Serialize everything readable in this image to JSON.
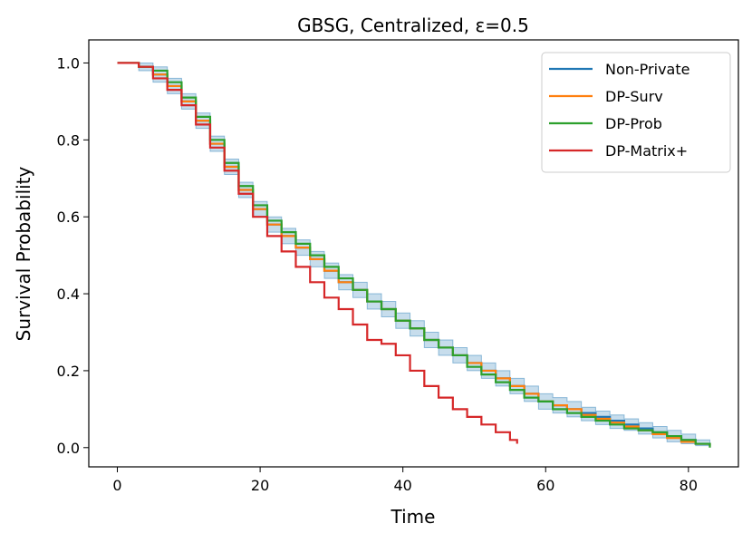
{
  "chart_data": {
    "type": "line",
    "title": "GBSG, Centralized, ε=0.5",
    "xlabel": "Time",
    "ylabel": "Survival Probability",
    "xlim": [
      -4,
      87
    ],
    "ylim": [
      -0.05,
      1.06
    ],
    "xticks": [
      0,
      20,
      40,
      60,
      80
    ],
    "yticks": [
      0.0,
      0.2,
      0.4,
      0.6,
      0.8,
      1.0
    ],
    "xtick_labels": [
      "0",
      "20",
      "40",
      "60",
      "80"
    ],
    "ytick_labels": [
      "0.0",
      "0.2",
      "0.4",
      "0.6",
      "0.8",
      "1.0"
    ],
    "grid": false,
    "legend_position": "top-right",
    "step": true,
    "series": [
      {
        "name": "Non-Private",
        "color": "#1f77b4",
        "points": [
          [
            0,
            1.0
          ],
          [
            3,
            0.99
          ],
          [
            5,
            0.97
          ],
          [
            7,
            0.94
          ],
          [
            9,
            0.9
          ],
          [
            11,
            0.85
          ],
          [
            13,
            0.79
          ],
          [
            15,
            0.73
          ],
          [
            17,
            0.67
          ],
          [
            19,
            0.62
          ],
          [
            21,
            0.58
          ],
          [
            23,
            0.55
          ],
          [
            25,
            0.52
          ],
          [
            27,
            0.49
          ],
          [
            29,
            0.46
          ],
          [
            31,
            0.43
          ],
          [
            33,
            0.41
          ],
          [
            35,
            0.38
          ],
          [
            37,
            0.36
          ],
          [
            39,
            0.33
          ],
          [
            41,
            0.31
          ],
          [
            43,
            0.28
          ],
          [
            45,
            0.26
          ],
          [
            47,
            0.24
          ],
          [
            49,
            0.22
          ],
          [
            51,
            0.2
          ],
          [
            53,
            0.18
          ],
          [
            55,
            0.16
          ],
          [
            57,
            0.14
          ],
          [
            59,
            0.12
          ],
          [
            61,
            0.11
          ],
          [
            63,
            0.1
          ],
          [
            65,
            0.09
          ],
          [
            67,
            0.08
          ],
          [
            69,
            0.07
          ],
          [
            71,
            0.06
          ],
          [
            73,
            0.05
          ],
          [
            75,
            0.04
          ],
          [
            77,
            0.03
          ],
          [
            79,
            0.02
          ],
          [
            81,
            0.01
          ],
          [
            83,
            0.005
          ]
        ]
      },
      {
        "name": "DP-Surv",
        "color": "#ff7f0e",
        "points": [
          [
            0,
            1.0
          ],
          [
            3,
            0.99
          ],
          [
            5,
            0.97
          ],
          [
            7,
            0.94
          ],
          [
            9,
            0.9
          ],
          [
            11,
            0.85
          ],
          [
            13,
            0.79
          ],
          [
            15,
            0.73
          ],
          [
            17,
            0.67
          ],
          [
            19,
            0.62
          ],
          [
            21,
            0.58
          ],
          [
            23,
            0.55
          ],
          [
            25,
            0.52
          ],
          [
            27,
            0.49
          ],
          [
            29,
            0.46
          ],
          [
            31,
            0.43
          ],
          [
            33,
            0.41
          ],
          [
            35,
            0.38
          ],
          [
            37,
            0.36
          ],
          [
            39,
            0.33
          ],
          [
            41,
            0.31
          ],
          [
            43,
            0.28
          ],
          [
            45,
            0.26
          ],
          [
            47,
            0.24
          ],
          [
            49,
            0.22
          ],
          [
            51,
            0.2
          ],
          [
            53,
            0.18
          ],
          [
            55,
            0.16
          ],
          [
            57,
            0.14
          ],
          [
            59,
            0.12
          ],
          [
            61,
            0.11
          ],
          [
            63,
            0.1
          ],
          [
            65,
            0.085
          ],
          [
            67,
            0.075
          ],
          [
            69,
            0.065
          ],
          [
            71,
            0.055
          ],
          [
            73,
            0.045
          ],
          [
            75,
            0.035
          ],
          [
            77,
            0.025
          ],
          [
            79,
            0.015
          ],
          [
            81,
            0.01
          ],
          [
            83,
            0.005
          ]
        ]
      },
      {
        "name": "DP-Prob",
        "color": "#2ca02c",
        "points": [
          [
            0,
            1.0
          ],
          [
            3,
            0.99
          ],
          [
            5,
            0.98
          ],
          [
            7,
            0.95
          ],
          [
            9,
            0.91
          ],
          [
            11,
            0.86
          ],
          [
            13,
            0.8
          ],
          [
            15,
            0.74
          ],
          [
            17,
            0.68
          ],
          [
            19,
            0.63
          ],
          [
            21,
            0.59
          ],
          [
            23,
            0.56
          ],
          [
            25,
            0.53
          ],
          [
            27,
            0.5
          ],
          [
            29,
            0.47
          ],
          [
            31,
            0.44
          ],
          [
            33,
            0.41
          ],
          [
            35,
            0.38
          ],
          [
            37,
            0.36
          ],
          [
            39,
            0.33
          ],
          [
            41,
            0.31
          ],
          [
            43,
            0.28
          ],
          [
            45,
            0.26
          ],
          [
            47,
            0.24
          ],
          [
            49,
            0.21
          ],
          [
            51,
            0.19
          ],
          [
            53,
            0.17
          ],
          [
            55,
            0.15
          ],
          [
            57,
            0.13
          ],
          [
            59,
            0.12
          ],
          [
            61,
            0.1
          ],
          [
            63,
            0.09
          ],
          [
            65,
            0.08
          ],
          [
            67,
            0.07
          ],
          [
            69,
            0.06
          ],
          [
            71,
            0.05
          ],
          [
            73,
            0.045
          ],
          [
            75,
            0.04
          ],
          [
            77,
            0.03
          ],
          [
            79,
            0.02
          ],
          [
            81,
            0.01
          ],
          [
            83,
            0.0
          ]
        ]
      },
      {
        "name": "DP-Matrix+",
        "color": "#d62728",
        "points": [
          [
            0,
            1.0
          ],
          [
            3,
            0.99
          ],
          [
            5,
            0.96
          ],
          [
            7,
            0.93
          ],
          [
            9,
            0.89
          ],
          [
            11,
            0.84
          ],
          [
            13,
            0.78
          ],
          [
            15,
            0.72
          ],
          [
            17,
            0.66
          ],
          [
            19,
            0.6
          ],
          [
            21,
            0.55
          ],
          [
            23,
            0.51
          ],
          [
            25,
            0.47
          ],
          [
            27,
            0.43
          ],
          [
            29,
            0.39
          ],
          [
            31,
            0.36
          ],
          [
            33,
            0.32
          ],
          [
            35,
            0.28
          ],
          [
            37,
            0.27
          ],
          [
            39,
            0.24
          ],
          [
            41,
            0.2
          ],
          [
            43,
            0.16
          ],
          [
            45,
            0.13
          ],
          [
            47,
            0.1
          ],
          [
            49,
            0.08
          ],
          [
            51,
            0.06
          ],
          [
            53,
            0.04
          ],
          [
            55,
            0.02
          ],
          [
            56,
            0.01
          ]
        ]
      }
    ],
    "band": {
      "series": "Non-Private",
      "color": "#1f77b4",
      "opacity": 0.25,
      "upper": [
        [
          0,
          1.0
        ],
        [
          3,
          1.0
        ],
        [
          5,
          0.99
        ],
        [
          7,
          0.96
        ],
        [
          9,
          0.92
        ],
        [
          11,
          0.87
        ],
        [
          13,
          0.81
        ],
        [
          15,
          0.75
        ],
        [
          17,
          0.69
        ],
        [
          19,
          0.64
        ],
        [
          21,
          0.6
        ],
        [
          23,
          0.57
        ],
        [
          25,
          0.54
        ],
        [
          27,
          0.51
        ],
        [
          29,
          0.48
        ],
        [
          31,
          0.45
        ],
        [
          33,
          0.43
        ],
        [
          35,
          0.4
        ],
        [
          37,
          0.38
        ],
        [
          39,
          0.35
        ],
        [
          41,
          0.33
        ],
        [
          43,
          0.3
        ],
        [
          45,
          0.28
        ],
        [
          47,
          0.26
        ],
        [
          49,
          0.24
        ],
        [
          51,
          0.22
        ],
        [
          53,
          0.2
        ],
        [
          55,
          0.18
        ],
        [
          57,
          0.16
        ],
        [
          59,
          0.14
        ],
        [
          61,
          0.13
        ],
        [
          63,
          0.12
        ],
        [
          65,
          0.105
        ],
        [
          67,
          0.095
        ],
        [
          69,
          0.085
        ],
        [
          71,
          0.075
        ],
        [
          73,
          0.065
        ],
        [
          75,
          0.055
        ],
        [
          77,
          0.045
        ],
        [
          79,
          0.035
        ],
        [
          81,
          0.02
        ],
        [
          83,
          0.01
        ]
      ],
      "lower": [
        [
          0,
          1.0
        ],
        [
          3,
          0.98
        ],
        [
          5,
          0.95
        ],
        [
          7,
          0.92
        ],
        [
          9,
          0.88
        ],
        [
          11,
          0.83
        ],
        [
          13,
          0.77
        ],
        [
          15,
          0.71
        ],
        [
          17,
          0.65
        ],
        [
          19,
          0.6
        ],
        [
          21,
          0.56
        ],
        [
          23,
          0.53
        ],
        [
          25,
          0.5
        ],
        [
          27,
          0.47
        ],
        [
          29,
          0.44
        ],
        [
          31,
          0.41
        ],
        [
          33,
          0.39
        ],
        [
          35,
          0.36
        ],
        [
          37,
          0.34
        ],
        [
          39,
          0.31
        ],
        [
          41,
          0.29
        ],
        [
          43,
          0.26
        ],
        [
          45,
          0.24
        ],
        [
          47,
          0.22
        ],
        [
          49,
          0.2
        ],
        [
          51,
          0.18
        ],
        [
          53,
          0.16
        ],
        [
          55,
          0.14
        ],
        [
          57,
          0.12
        ],
        [
          59,
          0.1
        ],
        [
          61,
          0.09
        ],
        [
          63,
          0.08
        ],
        [
          65,
          0.07
        ],
        [
          67,
          0.06
        ],
        [
          69,
          0.05
        ],
        [
          71,
          0.045
        ],
        [
          73,
          0.035
        ],
        [
          75,
          0.025
        ],
        [
          77,
          0.015
        ],
        [
          79,
          0.01
        ],
        [
          81,
          0.005
        ],
        [
          83,
          0.0
        ]
      ]
    }
  }
}
